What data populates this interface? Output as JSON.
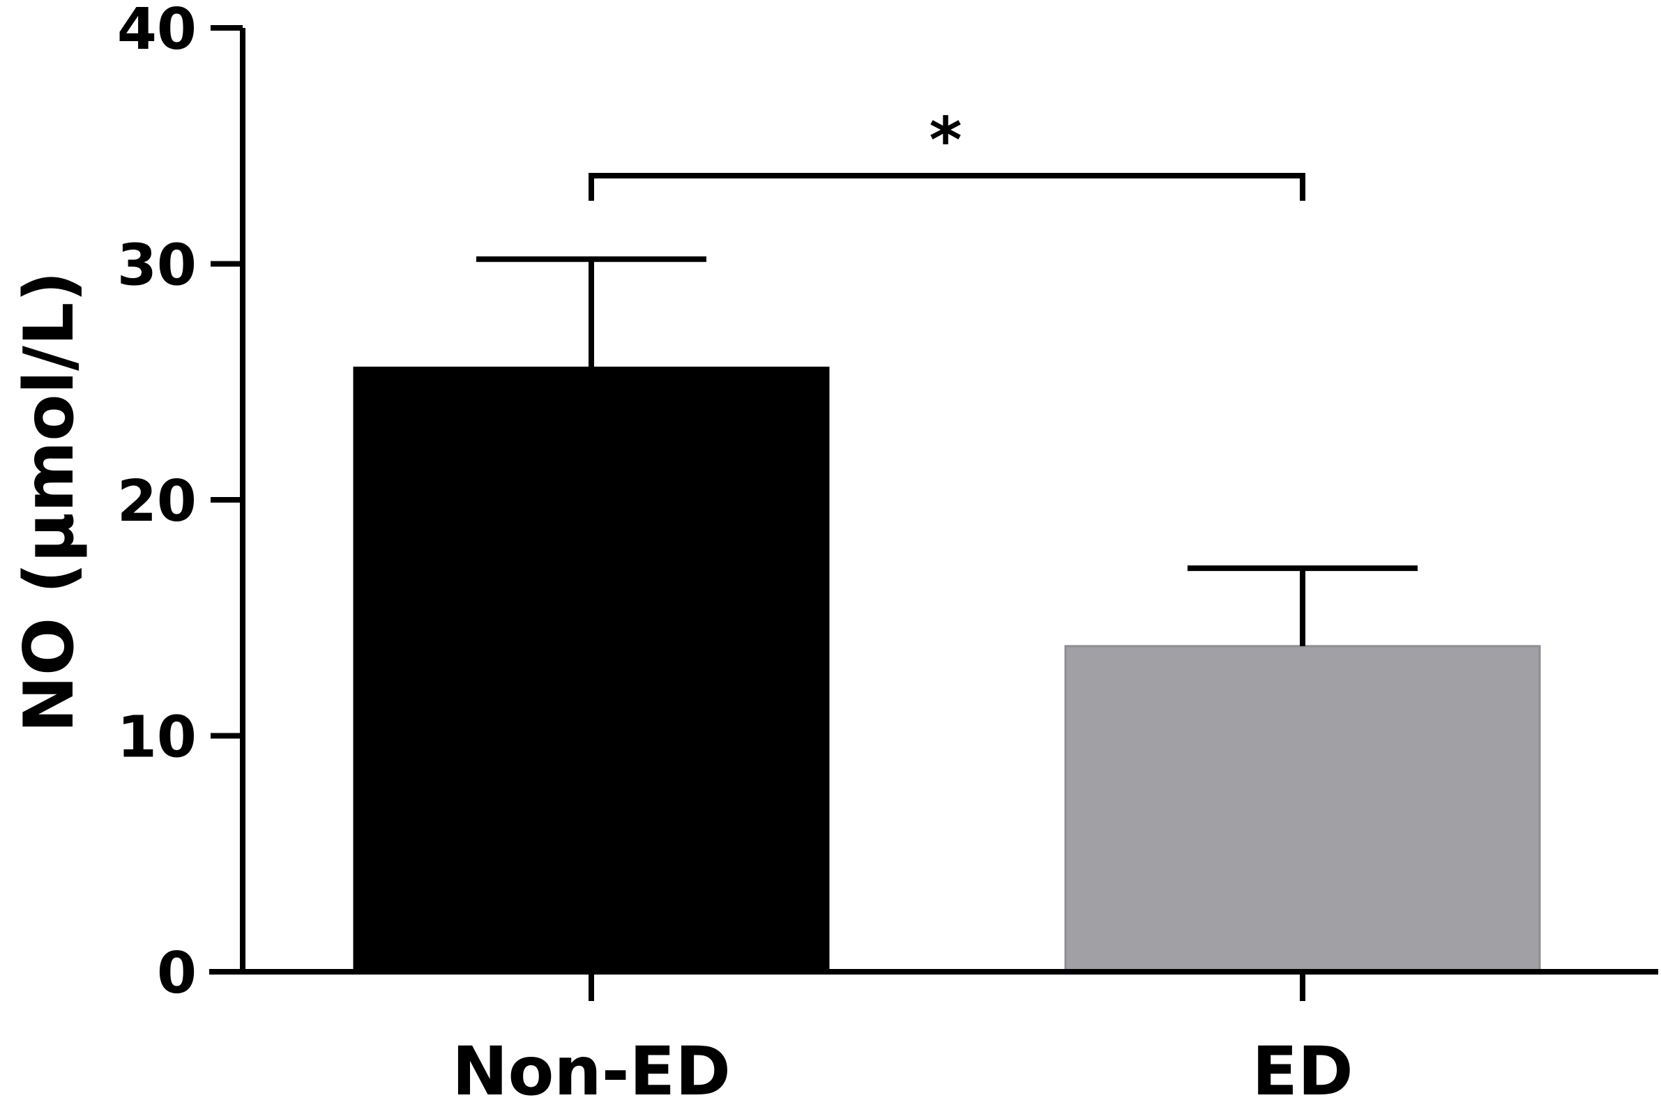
{
  "chart_data": {
    "type": "bar",
    "title": "",
    "xlabel": "",
    "ylabel": "NO (μmol/L)",
    "ylim": [
      0,
      40
    ],
    "yticks": [
      0,
      10,
      20,
      30,
      40
    ],
    "grid": false,
    "categories": [
      "Non-ED",
      "ED"
    ],
    "values": [
      25.6,
      13.8
    ],
    "errors": [
      4.6,
      3.3
    ],
    "colors": [
      "#000000",
      "#a1a0a5"
    ],
    "significance": {
      "between": [
        "Non-ED",
        "ED"
      ],
      "label": "*"
    }
  }
}
